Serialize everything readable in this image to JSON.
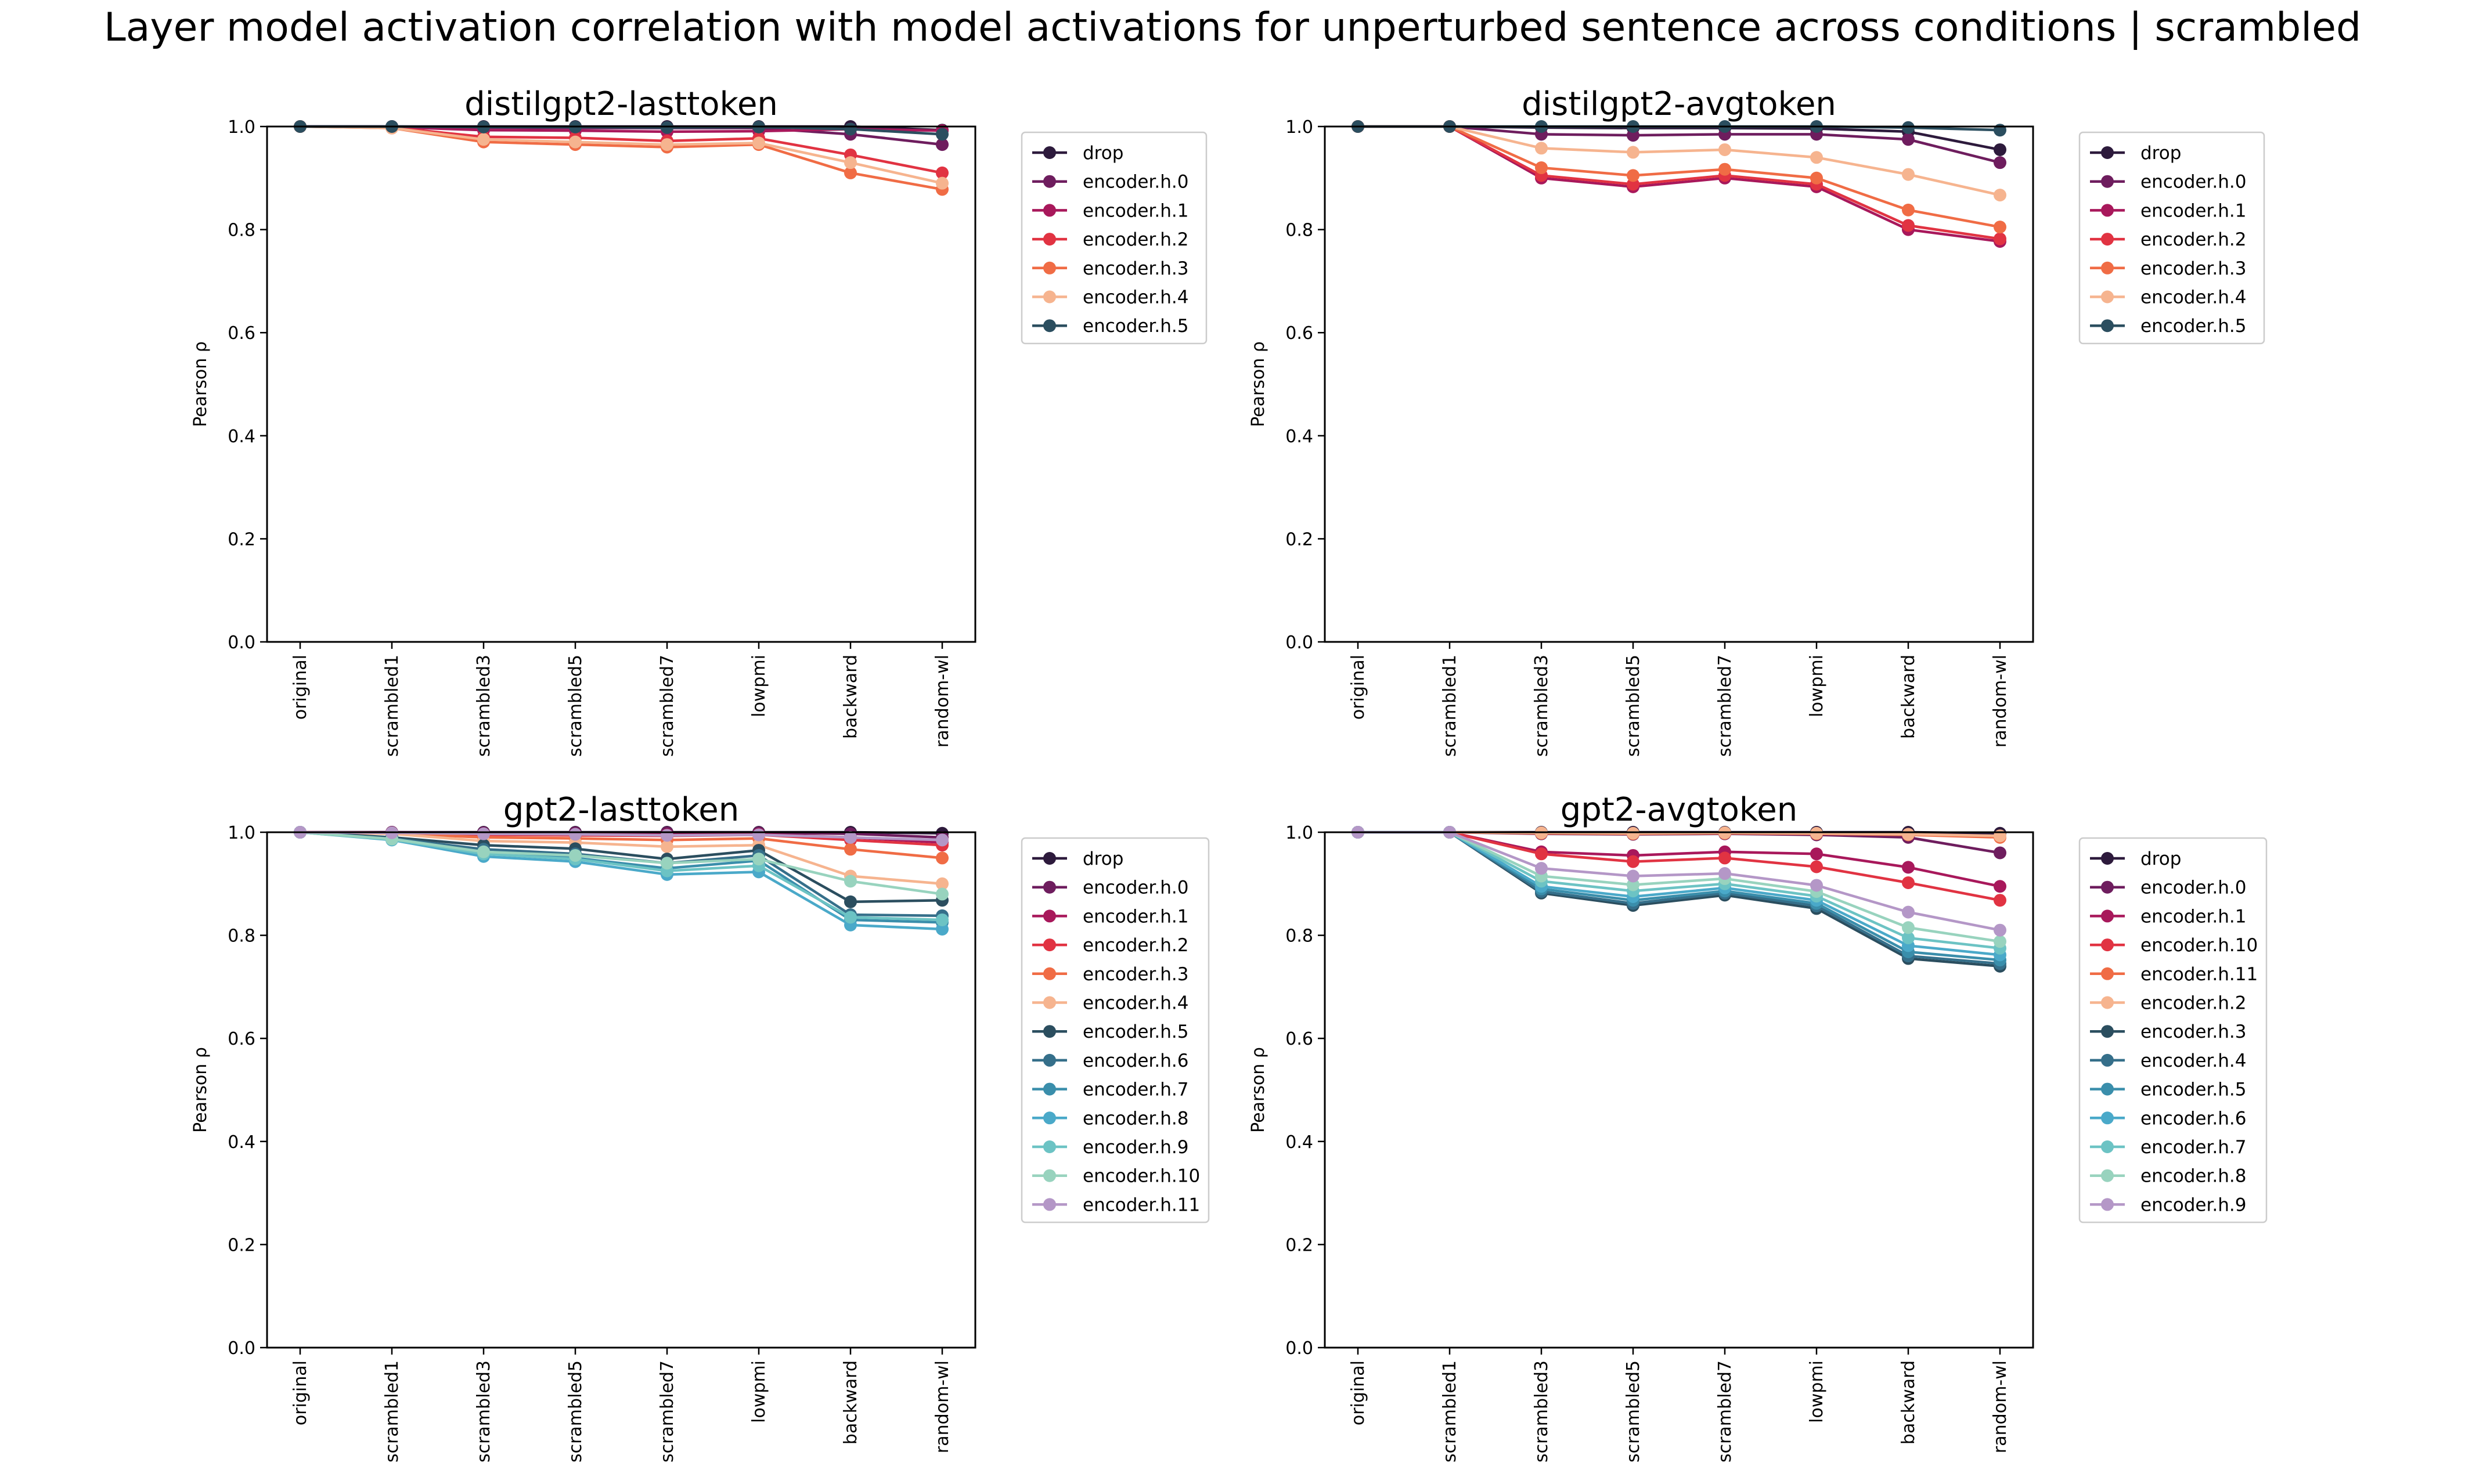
{
  "title": "Layer model activation correlation with model activations for unperturbed sentence across conditions | scrambled",
  "chart_data": [
    {
      "type": "line",
      "title": "distilgpt2-lasttoken",
      "xlabel": "",
      "ylabel": "Pearson ρ",
      "categories": [
        "original",
        "scrambled1",
        "scrambled3",
        "scrambled5",
        "scrambled7",
        "lowpmi",
        "backward",
        "random-wl"
      ],
      "ylim": [
        0,
        1
      ],
      "yticks": [
        "0.0",
        "0.2",
        "0.4",
        "0.6",
        "0.8",
        "1.0"
      ],
      "grid": false,
      "legend_position": "outside-right",
      "series": [
        {
          "name": "drop",
          "color": "#2d1a3c",
          "values": [
            1.0,
            1.0,
            1.0,
            1.0,
            1.0,
            1.0,
            1.0,
            0.993
          ]
        },
        {
          "name": "encoder.h.0",
          "color": "#6e1d5e",
          "values": [
            1.0,
            1.0,
            0.998,
            0.997,
            0.997,
            0.997,
            0.985,
            0.965
          ]
        },
        {
          "name": "encoder.h.1",
          "color": "#a8185b",
          "values": [
            1.0,
            0.999,
            0.993,
            0.992,
            0.99,
            0.991,
            0.995,
            0.992
          ]
        },
        {
          "name": "encoder.h.2",
          "color": "#e13342",
          "values": [
            1.0,
            0.998,
            0.98,
            0.978,
            0.972,
            0.977,
            0.945,
            0.91
          ]
        },
        {
          "name": "encoder.h.3",
          "color": "#f06c45",
          "values": [
            1.0,
            0.997,
            0.97,
            0.965,
            0.96,
            0.965,
            0.91,
            0.878
          ]
        },
        {
          "name": "encoder.h.4",
          "color": "#f6b48f",
          "values": [
            1.0,
            0.997,
            0.975,
            0.97,
            0.965,
            0.968,
            0.93,
            0.89
          ]
        },
        {
          "name": "encoder.h.5",
          "color": "#2b4e5f",
          "values": [
            1.0,
            1.0,
            0.999,
            0.999,
            0.998,
            0.999,
            0.995,
            0.985
          ]
        }
      ]
    },
    {
      "type": "line",
      "title": "distilgpt2-avgtoken",
      "xlabel": "",
      "ylabel": "Pearson ρ",
      "categories": [
        "original",
        "scrambled1",
        "scrambled3",
        "scrambled5",
        "scrambled7",
        "lowpmi",
        "backward",
        "random-wl"
      ],
      "ylim": [
        0,
        1
      ],
      "yticks": [
        "0.0",
        "0.2",
        "0.4",
        "0.6",
        "0.8",
        "1.0"
      ],
      "grid": false,
      "legend_position": "outside-right",
      "series": [
        {
          "name": "drop",
          "color": "#2d1a3c",
          "values": [
            1.0,
            1.0,
            0.998,
            0.997,
            0.997,
            0.996,
            0.99,
            0.955
          ]
        },
        {
          "name": "encoder.h.0",
          "color": "#6e1d5e",
          "values": [
            1.0,
            1.0,
            0.985,
            0.983,
            0.985,
            0.985,
            0.975,
            0.93
          ]
        },
        {
          "name": "encoder.h.1",
          "color": "#a8185b",
          "values": [
            1.0,
            1.0,
            0.9,
            0.883,
            0.9,
            0.883,
            0.8,
            0.777
          ]
        },
        {
          "name": "encoder.h.2",
          "color": "#e13342",
          "values": [
            1.0,
            1.0,
            0.905,
            0.888,
            0.905,
            0.888,
            0.808,
            0.782
          ]
        },
        {
          "name": "encoder.h.3",
          "color": "#f06c45",
          "values": [
            1.0,
            1.0,
            0.92,
            0.905,
            0.917,
            0.9,
            0.838,
            0.805
          ]
        },
        {
          "name": "encoder.h.4",
          "color": "#f6b48f",
          "values": [
            1.0,
            1.0,
            0.958,
            0.95,
            0.955,
            0.94,
            0.907,
            0.867
          ]
        },
        {
          "name": "encoder.h.5",
          "color": "#2b4e5f",
          "values": [
            1.0,
            1.0,
            1.0,
            1.0,
            1.0,
            1.0,
            0.998,
            0.993
          ]
        }
      ]
    },
    {
      "type": "line",
      "title": "gpt2-lasttoken",
      "xlabel": "",
      "ylabel": "Pearson ρ",
      "categories": [
        "original",
        "scrambled1",
        "scrambled3",
        "scrambled5",
        "scrambled7",
        "lowpmi",
        "backward",
        "random-wl"
      ],
      "ylim": [
        0,
        1
      ],
      "yticks": [
        "0.0",
        "0.2",
        "0.4",
        "0.6",
        "0.8",
        "1.0"
      ],
      "grid": false,
      "legend_position": "outside-right",
      "series": [
        {
          "name": "drop",
          "color": "#2d1a3c",
          "values": [
            1.0,
            1.0,
            1.0,
            1.0,
            1.0,
            1.0,
            1.0,
            0.998
          ]
        },
        {
          "name": "encoder.h.0",
          "color": "#6e1d5e",
          "values": [
            1.0,
            1.0,
            0.999,
            0.999,
            0.999,
            0.999,
            0.997,
            0.99
          ]
        },
        {
          "name": "encoder.h.1",
          "color": "#a8185b",
          "values": [
            1.0,
            0.999,
            0.997,
            0.996,
            0.995,
            0.996,
            0.99,
            0.98
          ]
        },
        {
          "name": "encoder.h.2",
          "color": "#e13342",
          "values": [
            1.0,
            0.999,
            0.995,
            0.994,
            0.993,
            0.995,
            0.985,
            0.975
          ]
        },
        {
          "name": "encoder.h.3",
          "color": "#f06c45",
          "values": [
            1.0,
            0.998,
            0.99,
            0.988,
            0.985,
            0.988,
            0.967,
            0.95
          ]
        },
        {
          "name": "encoder.h.4",
          "color": "#f6b48f",
          "values": [
            1.0,
            0.997,
            0.983,
            0.98,
            0.972,
            0.975,
            0.915,
            0.9
          ]
        },
        {
          "name": "encoder.h.5",
          "color": "#2b4e5f",
          "values": [
            1.0,
            0.99,
            0.975,
            0.968,
            0.948,
            0.965,
            0.865,
            0.868
          ]
        },
        {
          "name": "encoder.h.6",
          "color": "#356f8a",
          "values": [
            1.0,
            0.988,
            0.967,
            0.958,
            0.94,
            0.955,
            0.84,
            0.838
          ]
        },
        {
          "name": "encoder.h.7",
          "color": "#3a8eab",
          "values": [
            1.0,
            0.986,
            0.96,
            0.95,
            0.93,
            0.945,
            0.83,
            0.825
          ]
        },
        {
          "name": "encoder.h.8",
          "color": "#4aa9c9",
          "values": [
            1.0,
            0.985,
            0.953,
            0.943,
            0.918,
            0.923,
            0.82,
            0.812
          ]
        },
        {
          "name": "encoder.h.9",
          "color": "#6cc3c4",
          "values": [
            1.0,
            0.986,
            0.958,
            0.948,
            0.925,
            0.935,
            0.835,
            0.83
          ]
        },
        {
          "name": "encoder.h.10",
          "color": "#98d3be",
          "values": [
            1.0,
            0.987,
            0.962,
            0.955,
            0.94,
            0.948,
            0.905,
            0.88
          ]
        },
        {
          "name": "encoder.h.11",
          "color": "#b497c7",
          "values": [
            1.0,
            0.999,
            0.997,
            0.996,
            0.994,
            0.995,
            0.99,
            0.985
          ]
        }
      ]
    },
    {
      "type": "line",
      "title": "gpt2-avgtoken",
      "xlabel": "",
      "ylabel": "Pearson ρ",
      "categories": [
        "original",
        "scrambled1",
        "scrambled3",
        "scrambled5",
        "scrambled7",
        "lowpmi",
        "backward",
        "random-wl"
      ],
      "ylim": [
        0,
        1
      ],
      "yticks": [
        "0.0",
        "0.2",
        "0.4",
        "0.6",
        "0.8",
        "1.0"
      ],
      "grid": false,
      "legend_position": "outside-right",
      "series": [
        {
          "name": "drop",
          "color": "#2d1a3c",
          "values": [
            1.0,
            1.0,
            1.0,
            1.0,
            1.0,
            1.0,
            1.0,
            0.998
          ]
        },
        {
          "name": "encoder.h.0",
          "color": "#6e1d5e",
          "values": [
            1.0,
            1.0,
            0.997,
            0.996,
            0.997,
            0.995,
            0.99,
            0.96
          ]
        },
        {
          "name": "encoder.h.1",
          "color": "#a8185b",
          "values": [
            1.0,
            1.0,
            0.962,
            0.955,
            0.962,
            0.958,
            0.932,
            0.895
          ]
        },
        {
          "name": "encoder.h.10",
          "color": "#e13342",
          "values": [
            1.0,
            1.0,
            0.958,
            0.943,
            0.95,
            0.933,
            0.902,
            0.868
          ]
        },
        {
          "name": "encoder.h.11",
          "color": "#f06c45",
          "values": [
            1.0,
            1.0,
            0.998,
            0.997,
            0.998,
            0.997,
            0.995,
            0.99
          ]
        },
        {
          "name": "encoder.h.2",
          "color": "#f6b48f",
          "values": [
            1.0,
            1.0,
            0.999,
            0.998,
            0.999,
            0.998,
            0.996,
            0.993
          ]
        },
        {
          "name": "encoder.h.3",
          "color": "#2b4e5f",
          "values": [
            1.0,
            1.0,
            0.882,
            0.858,
            0.878,
            0.852,
            0.755,
            0.74
          ]
        },
        {
          "name": "encoder.h.4",
          "color": "#356f8a",
          "values": [
            1.0,
            1.0,
            0.885,
            0.862,
            0.882,
            0.857,
            0.76,
            0.745
          ]
        },
        {
          "name": "encoder.h.5",
          "color": "#3a8eab",
          "values": [
            1.0,
            1.0,
            0.89,
            0.868,
            0.886,
            0.862,
            0.768,
            0.752
          ]
        },
        {
          "name": "encoder.h.6",
          "color": "#4aa9c9",
          "values": [
            1.0,
            1.0,
            0.895,
            0.875,
            0.892,
            0.868,
            0.78,
            0.762
          ]
        },
        {
          "name": "encoder.h.7",
          "color": "#6cc3c4",
          "values": [
            1.0,
            1.0,
            0.905,
            0.886,
            0.9,
            0.876,
            0.795,
            0.775
          ]
        },
        {
          "name": "encoder.h.8",
          "color": "#98d3be",
          "values": [
            1.0,
            1.0,
            0.915,
            0.898,
            0.91,
            0.885,
            0.815,
            0.788
          ]
        },
        {
          "name": "encoder.h.9",
          "color": "#b497c7",
          "values": [
            1.0,
            1.0,
            0.93,
            0.915,
            0.92,
            0.897,
            0.845,
            0.81
          ]
        }
      ]
    }
  ]
}
